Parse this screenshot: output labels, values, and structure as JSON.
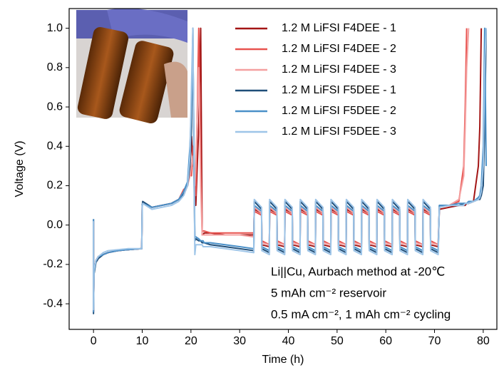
{
  "chart_data": {
    "type": "line",
    "xlabel": "Time (h)",
    "ylabel": "Voltage (V)",
    "xlim": [
      -5,
      82.8
    ],
    "ylim": [
      -0.53,
      1.1
    ],
    "xticks": [
      0,
      10,
      20,
      30,
      40,
      50,
      60,
      70,
      80
    ],
    "yticks": [
      -0.4,
      -0.2,
      {
        "value": 0,
        "label": "0.0"
      },
      0.2,
      0.4,
      0.6,
      0.8,
      {
        "value": 1,
        "label": "1.0"
      }
    ],
    "legend": "upper right",
    "annotations": [
      "Li||Cu, Aurbach method at -20℃",
      "5 mAh cm⁻² reservoir",
      "0.5 mA cm⁻², 1 mAh cm⁻² cycling"
    ],
    "x": [
      0,
      0,
      0.1,
      0.5,
      1,
      2,
      3,
      5,
      7,
      9.9,
      10,
      10.1,
      12,
      14,
      16,
      17.5,
      18.5,
      19.3,
      19.8,
      20.1,
      20.4,
      20.6,
      20.8,
      21,
      21.6,
      22,
      22.3,
      22.5,
      22.7,
      24,
      27,
      30,
      32.9,
      33,
      34.5,
      34.55,
      36.1,
      36.15,
      37.65,
      37.7,
      39.25,
      39.3,
      40.8,
      40.85,
      42.4,
      42.45,
      43.95,
      44,
      45.55,
      45.6,
      47.1,
      47.15,
      48.7,
      48.75,
      50.25,
      50.3,
      51.85,
      51.9,
      53.4,
      53.45,
      55,
      55.05,
      56.55,
      56.6,
      58.15,
      58.2,
      59.7,
      59.75,
      61.3,
      61.35,
      62.85,
      62.9,
      64.45,
      64.5,
      66,
      66.05,
      67.6,
      67.65,
      69.15,
      69.2,
      70.75,
      71,
      73,
      75,
      76,
      76.3,
      76.6,
      77,
      78,
      79,
      79.3,
      79.6,
      80,
      80.3,
      80.6
    ],
    "series": [
      {
        "name": "1.2 M LiFSI F4DEE - 1",
        "color": "#a31515",
        "values": [
          0.02,
          -0.44,
          -0.24,
          -0.18,
          -0.16,
          -0.15,
          -0.14,
          -0.13,
          -0.125,
          -0.12,
          0.1,
          0.11,
          0.09,
          0.1,
          0.11,
          0.13,
          0.16,
          0.2,
          0.3,
          0.45,
          0.3,
          0.35,
          0.2,
          0.1,
          0.5,
          1.0,
          -0.05,
          -0.05,
          -0.04,
          -0.04,
          -0.05,
          -0.05,
          -0.05,
          0.08,
          0.06,
          -0.1,
          -0.11,
          0.08,
          0.06,
          -0.1,
          -0.11,
          0.08,
          0.06,
          -0.1,
          -0.11,
          0.08,
          0.06,
          -0.1,
          -0.11,
          0.08,
          0.06,
          -0.1,
          -0.11,
          0.08,
          0.06,
          -0.1,
          -0.11,
          0.08,
          0.06,
          -0.1,
          -0.11,
          0.08,
          0.06,
          -0.1,
          -0.11,
          0.08,
          0.06,
          -0.1,
          -0.11,
          0.08,
          0.06,
          -0.1,
          -0.11,
          0.08,
          0.06,
          -0.1,
          -0.11,
          0.08,
          0.06,
          -0.1,
          -0.11,
          0.08,
          0.09,
          0.1,
          0.1,
          0.1,
          0.11,
          0.11,
          0.12,
          0.3,
          0.5,
          1.0,
          null,
          null,
          null
        ]
      },
      {
        "name": "1.2 M LiFSI F4DEE - 2",
        "color": "#e8534f",
        "values": [
          0.02,
          -0.44,
          -0.24,
          -0.18,
          -0.16,
          -0.15,
          -0.14,
          -0.13,
          -0.125,
          -0.12,
          0.1,
          0.11,
          0.09,
          0.1,
          0.11,
          0.13,
          0.18,
          0.2,
          0.3,
          0.25,
          0.4,
          0.3,
          0.15,
          0.15,
          1.0,
          0.3,
          -0.03,
          -0.03,
          -0.03,
          -0.04,
          -0.04,
          -0.04,
          -0.04,
          0.07,
          0.05,
          -0.08,
          -0.1,
          0.07,
          0.05,
          -0.08,
          -0.1,
          0.07,
          0.05,
          -0.08,
          -0.1,
          0.07,
          0.05,
          -0.08,
          -0.1,
          0.07,
          0.05,
          -0.08,
          -0.1,
          0.07,
          0.05,
          -0.08,
          -0.1,
          0.07,
          0.05,
          -0.08,
          -0.1,
          0.07,
          0.05,
          -0.08,
          -0.1,
          0.07,
          0.05,
          -0.08,
          -0.1,
          0.07,
          0.05,
          -0.08,
          -0.1,
          0.07,
          0.05,
          -0.08,
          -0.1,
          0.07,
          0.05,
          -0.08,
          -0.1,
          0.09,
          0.1,
          0.12,
          0.3,
          0.6,
          1.0,
          null,
          null,
          null,
          null,
          null,
          null,
          null,
          null
        ]
      },
      {
        "name": "1.2 M LiFSI F4DEE - 3",
        "color": "#f4a0a0",
        "values": [
          0.02,
          -0.44,
          -0.24,
          -0.18,
          -0.16,
          -0.15,
          -0.14,
          -0.13,
          -0.125,
          -0.12,
          0.1,
          0.11,
          0.09,
          0.1,
          0.11,
          0.13,
          0.15,
          0.2,
          0.25,
          0.3,
          0.35,
          0.25,
          0.2,
          0.3,
          0.8,
          0.2,
          -0.05,
          -0.05,
          -0.05,
          -0.05,
          -0.05,
          -0.05,
          -0.06,
          0.09,
          0.06,
          -0.09,
          -0.1,
          0.09,
          0.06,
          -0.09,
          -0.1,
          0.09,
          0.06,
          -0.09,
          -0.1,
          0.09,
          0.06,
          -0.09,
          -0.1,
          0.09,
          0.06,
          -0.09,
          -0.1,
          0.09,
          0.06,
          -0.09,
          -0.1,
          0.09,
          0.06,
          -0.09,
          -0.1,
          0.09,
          0.06,
          -0.09,
          -0.1,
          0.09,
          0.06,
          -0.09,
          -0.1,
          0.09,
          0.06,
          -0.09,
          -0.1,
          0.09,
          0.06,
          -0.09,
          -0.1,
          0.09,
          0.06,
          -0.09,
          -0.1,
          0.09,
          0.1,
          0.13,
          0.25,
          0.5,
          0.8,
          1.0,
          null,
          null,
          null,
          null,
          null,
          null,
          null
        ]
      },
      {
        "name": "1.2 M LiFSI F5DEE - 1",
        "color": "#1f4e79",
        "values": [
          0.03,
          -0.45,
          -0.25,
          -0.19,
          -0.17,
          -0.15,
          -0.14,
          -0.13,
          -0.125,
          -0.12,
          0.1,
          0.12,
          0.09,
          0.1,
          0.11,
          0.13,
          0.16,
          0.2,
          0.3,
          0.5,
          1.0,
          0.3,
          -0.08,
          -0.07,
          -0.08,
          -0.08,
          -0.09,
          -0.09,
          -0.09,
          -0.1,
          -0.11,
          -0.12,
          -0.13,
          0.12,
          0.08,
          -0.12,
          -0.14,
          0.12,
          0.08,
          -0.12,
          -0.14,
          0.12,
          0.08,
          -0.12,
          -0.14,
          0.12,
          0.08,
          -0.12,
          -0.14,
          0.12,
          0.08,
          -0.12,
          -0.14,
          0.12,
          0.08,
          -0.12,
          -0.14,
          0.12,
          0.08,
          -0.12,
          -0.14,
          0.12,
          0.08,
          -0.12,
          -0.14,
          0.12,
          0.08,
          -0.12,
          -0.14,
          0.12,
          0.08,
          -0.12,
          -0.14,
          0.12,
          0.08,
          -0.12,
          -0.14,
          0.12,
          0.08,
          -0.12,
          -0.14,
          0.1,
          0.1,
          0.1,
          0.11,
          0.11,
          0.11,
          0.11,
          0.12,
          0.13,
          0.13,
          0.15,
          0.2,
          0.5,
          1.0
        ]
      },
      {
        "name": "1.2 M LiFSI F5DEE - 2",
        "color": "#4a90c8",
        "values": [
          0.03,
          -0.44,
          -0.24,
          -0.18,
          -0.16,
          -0.15,
          -0.14,
          -0.13,
          -0.125,
          -0.12,
          0.1,
          0.11,
          0.09,
          0.1,
          0.11,
          0.13,
          0.17,
          0.22,
          0.4,
          0.6,
          0.9,
          0.5,
          -0.06,
          -0.06,
          -0.07,
          -0.08,
          -0.08,
          -0.08,
          -0.09,
          -0.09,
          -0.1,
          -0.11,
          -0.12,
          0.1,
          0.07,
          -0.11,
          -0.13,
          0.1,
          0.07,
          -0.11,
          -0.13,
          0.1,
          0.07,
          -0.11,
          -0.13,
          0.1,
          0.07,
          -0.11,
          -0.13,
          0.1,
          0.07,
          -0.11,
          -0.13,
          0.1,
          0.07,
          -0.11,
          -0.13,
          0.1,
          0.07,
          -0.11,
          -0.13,
          0.1,
          0.07,
          -0.11,
          -0.13,
          0.1,
          0.07,
          -0.11,
          -0.13,
          0.1,
          0.07,
          -0.11,
          -0.13,
          0.1,
          0.07,
          -0.11,
          -0.13,
          0.1,
          0.07,
          -0.11,
          -0.13,
          0.1,
          0.1,
          0.11,
          0.11,
          0.11,
          0.11,
          0.12,
          0.12,
          0.14,
          0.15,
          0.2,
          0.4,
          1.0,
          0.3
        ]
      },
      {
        "name": "1.2 M LiFSI F5DEE - 3",
        "color": "#9ec5e8",
        "values": [
          0.02,
          -0.43,
          -0.23,
          -0.18,
          -0.16,
          -0.14,
          -0.13,
          -0.125,
          -0.12,
          -0.12,
          0.09,
          0.11,
          0.08,
          0.09,
          0.1,
          0.12,
          0.15,
          0.2,
          0.35,
          0.7,
          1.0,
          0.4,
          -0.15,
          -0.1,
          -0.1,
          -0.1,
          -0.1,
          -0.11,
          -0.11,
          -0.11,
          -0.12,
          -0.13,
          -0.14,
          0.13,
          0.09,
          -0.13,
          -0.15,
          0.13,
          0.09,
          -0.13,
          -0.15,
          0.13,
          0.09,
          -0.13,
          -0.15,
          0.13,
          0.09,
          -0.13,
          -0.15,
          0.13,
          0.09,
          -0.13,
          -0.15,
          0.13,
          0.09,
          -0.13,
          -0.15,
          0.13,
          0.09,
          -0.13,
          -0.15,
          0.13,
          0.09,
          -0.13,
          -0.15,
          0.13,
          0.09,
          -0.13,
          -0.15,
          0.13,
          0.09,
          -0.13,
          -0.15,
          0.13,
          0.09,
          -0.13,
          -0.15,
          0.13,
          0.09,
          -0.13,
          -0.15,
          0.09,
          0.1,
          0.1,
          0.1,
          0.11,
          0.11,
          0.11,
          0.12,
          0.13,
          0.14,
          0.17,
          0.3,
          0.8,
          1.0
        ]
      }
    ]
  }
}
